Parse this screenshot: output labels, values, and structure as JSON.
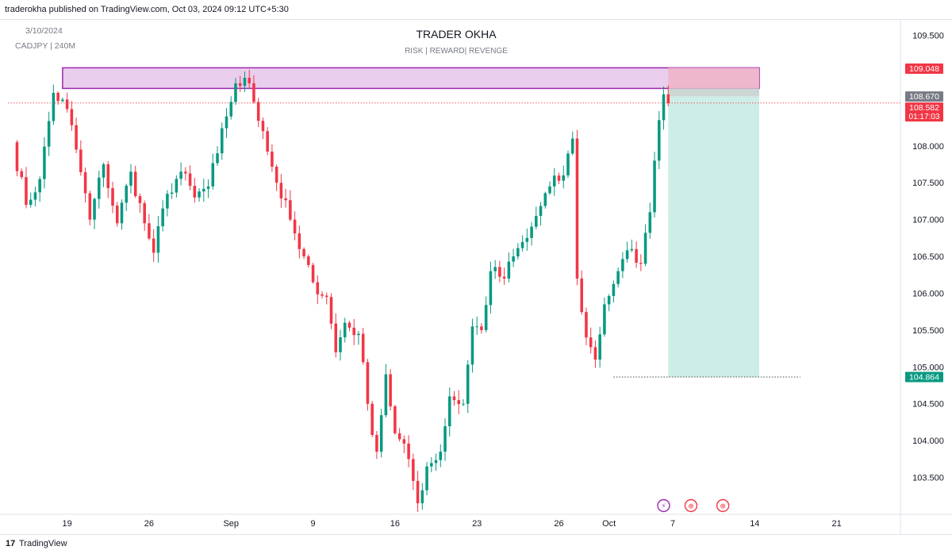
{
  "header": {
    "publisher_text": "traderokha published on TradingView.com, Oct 03, 2024 09:12 UTC+5:30"
  },
  "footer": {
    "logo_glyph": "17",
    "brand": "TradingView"
  },
  "colors": {
    "up": "#089981",
    "down": "#f23645",
    "zone_fill": "#e1bee7",
    "zone_border": "#9c27b0",
    "stop_fill": "#f0b5c8",
    "target_fill": "#cdeee7",
    "price_label_bg": "#787b86",
    "target_label_bg": "#089981",
    "current_label_bg": "#f23645"
  },
  "chart_data": {
    "type": "candlestick",
    "symbol_text": "CADJPY | 240M",
    "date_text": "3/10/2024",
    "title": "TRADER OKHA",
    "subtitle": "RISK | REWARD| REVENGE",
    "ylim": [
      103.0,
      109.7
    ],
    "yticks": [
      {
        "value": 109.5,
        "label": "109.500"
      },
      {
        "value": 108.0,
        "label": "108.000"
      },
      {
        "value": 107.5,
        "label": "107.500"
      },
      {
        "value": 107.0,
        "label": "107.000"
      },
      {
        "value": 106.5,
        "label": "106.500"
      },
      {
        "value": 106.0,
        "label": "106.000"
      },
      {
        "value": 105.5,
        "label": "105.500"
      },
      {
        "value": 105.0,
        "label": "105.000"
      },
      {
        "value": 104.5,
        "label": "104.500"
      },
      {
        "value": 104.0,
        "label": "104.000"
      },
      {
        "value": 103.5,
        "label": "103.500"
      }
    ],
    "xticks": [
      {
        "index": 12,
        "label": "19"
      },
      {
        "index": 30,
        "label": "26"
      },
      {
        "index": 48,
        "label": "Sep"
      },
      {
        "index": 66,
        "label": "9"
      },
      {
        "index": 84,
        "label": "16"
      },
      {
        "index": 102,
        "label": "23"
      },
      {
        "index": 120,
        "label": "26"
      },
      {
        "index": 131,
        "label": "Oct"
      },
      {
        "index": 145,
        "label": "7"
      },
      {
        "index": 163,
        "label": "14"
      },
      {
        "index": 181,
        "label": "21"
      }
    ],
    "x_domain": [
      -1,
      195
    ],
    "anchors": [
      {
        "i": 0,
        "p": 108.05
      },
      {
        "i": 3,
        "p": 107.2
      },
      {
        "i": 6,
        "p": 107.55
      },
      {
        "i": 9,
        "p": 108.72
      },
      {
        "i": 12,
        "p": 108.5
      },
      {
        "i": 14,
        "p": 107.95
      },
      {
        "i": 17,
        "p": 107.0
      },
      {
        "i": 20,
        "p": 107.75
      },
      {
        "i": 23,
        "p": 106.95
      },
      {
        "i": 26,
        "p": 107.65
      },
      {
        "i": 29,
        "p": 106.95
      },
      {
        "i": 31,
        "p": 106.55
      },
      {
        "i": 34,
        "p": 107.35
      },
      {
        "i": 37,
        "p": 107.65
      },
      {
        "i": 40,
        "p": 107.3
      },
      {
        "i": 43,
        "p": 107.45
      },
      {
        "i": 45,
        "p": 107.9
      },
      {
        "i": 47,
        "p": 108.4
      },
      {
        "i": 49,
        "p": 108.85
      },
      {
        "i": 52,
        "p": 108.85
      },
      {
        "i": 55,
        "p": 108.2
      },
      {
        "i": 58,
        "p": 107.5
      },
      {
        "i": 61,
        "p": 107.0
      },
      {
        "i": 63,
        "p": 106.6
      },
      {
        "i": 66,
        "p": 106.15
      },
      {
        "i": 69,
        "p": 105.95
      },
      {
        "i": 71,
        "p": 105.2
      },
      {
        "i": 73,
        "p": 105.6
      },
      {
        "i": 76,
        "p": 105.45
      },
      {
        "i": 78,
        "p": 104.5
      },
      {
        "i": 80,
        "p": 103.85
      },
      {
        "i": 82,
        "p": 104.9
      },
      {
        "i": 84,
        "p": 104.1
      },
      {
        "i": 87,
        "p": 103.75
      },
      {
        "i": 89,
        "p": 103.15
      },
      {
        "i": 91,
        "p": 103.65
      },
      {
        "i": 94,
        "p": 103.85
      },
      {
        "i": 96,
        "p": 104.6
      },
      {
        "i": 99,
        "p": 104.5
      },
      {
        "i": 101,
        "p": 105.55
      },
      {
        "i": 103,
        "p": 105.5
      },
      {
        "i": 105,
        "p": 106.3
      },
      {
        "i": 108,
        "p": 106.2
      },
      {
        "i": 110,
        "p": 106.5
      },
      {
        "i": 113,
        "p": 106.75
      },
      {
        "i": 115,
        "p": 107.05
      },
      {
        "i": 118,
        "p": 107.45
      },
      {
        "i": 121,
        "p": 107.6
      },
      {
        "i": 123,
        "p": 108.1
      },
      {
        "i": 124,
        "p": 106.2
      },
      {
        "i": 126,
        "p": 105.4
      },
      {
        "i": 128,
        "p": 105.1
      },
      {
        "i": 130,
        "p": 105.85
      },
      {
        "i": 133,
        "p": 106.3
      },
      {
        "i": 136,
        "p": 106.6
      },
      {
        "i": 138,
        "p": 106.4
      },
      {
        "i": 140,
        "p": 107.1
      },
      {
        "i": 141,
        "p": 107.8
      },
      {
        "i": 142,
        "p": 108.35
      },
      {
        "i": 143,
        "p": 108.7
      },
      {
        "i": 144,
        "p": 108.58
      }
    ],
    "zones": [
      {
        "name": "supply-zone",
        "x0": 11,
        "x1": 164,
        "y0": 108.78,
        "y1": 109.06
      },
      {
        "name": "stop-zone",
        "x0": 144,
        "x1": 164,
        "y0": 108.78,
        "y1": 109.06
      },
      {
        "name": "entry-strip",
        "x0": 144,
        "x1": 164,
        "y0": 108.67,
        "y1": 108.78
      },
      {
        "name": "target-zone",
        "x0": 144,
        "x1": 164,
        "y0": 104.864,
        "y1": 108.67
      }
    ],
    "lines": [
      {
        "name": "current-price-line",
        "price": 108.582,
        "x0": -1,
        "x1": 195,
        "style": "dotted",
        "color": "#f23645"
      },
      {
        "name": "target-line",
        "price": 104.864,
        "x0": 132,
        "x1": 173,
        "style": "dotted",
        "color": "#131722"
      }
    ],
    "price_labels": [
      {
        "name": "stop-price-label",
        "price": 109.048,
        "text": "109.048",
        "color": "#f23645"
      },
      {
        "name": "entry-price-label",
        "price": 108.67,
        "text": "108.670",
        "color": "#787b86"
      },
      {
        "name": "current-price-label",
        "price": 108.582,
        "text": "108.582",
        "sub": "01:17:03",
        "color": "#f23645"
      },
      {
        "name": "target-price-label",
        "price": 104.864,
        "text": "104.864",
        "color": "#089981"
      }
    ],
    "event_icons": [
      {
        "name": "lightning-event-icon",
        "index": 143,
        "glyph": "⚡",
        "color": "#9c27b0"
      },
      {
        "name": "canada-flag-event-icon",
        "index": 149,
        "glyph": "⊕",
        "color": "#f23645"
      },
      {
        "name": "canada-flag-event-icon-2",
        "index": 156,
        "glyph": "⊕",
        "color": "#f23645"
      }
    ]
  }
}
